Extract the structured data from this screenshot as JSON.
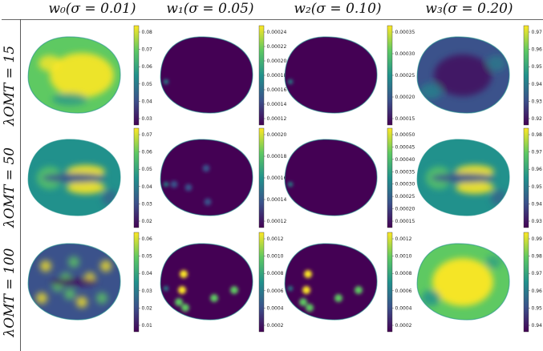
{
  "figure": {
    "columns": [
      "w₀(σ = 0.01)",
      "w₁(σ = 0.05)",
      "w₂(σ = 0.10)",
      "w₃(σ = 0.20)"
    ],
    "rows": [
      "λₒₘₜ = 15",
      "λₒₘₜ = 50",
      "λₒₘₜ = 100"
    ],
    "row_labels": [
      "λOMT = 15",
      "λOMT = 50",
      "λOMT = 100"
    ]
  },
  "colormap": {
    "name": "viridis",
    "stops": [
      "#440154",
      "#3b528b",
      "#21918c",
      "#5ec962",
      "#fde725"
    ]
  },
  "panels": [
    {
      "row": 0,
      "col": 0,
      "pattern": "high",
      "ticks": [
        "0.08",
        "0.07",
        "0.06",
        "0.05",
        "0.04",
        "0.03"
      ]
    },
    {
      "row": 0,
      "col": 1,
      "pattern": "flat",
      "ticks": [
        "0.00024",
        "0.00022",
        "0.00020",
        "0.00018",
        "0.00016",
        "0.00014",
        "0.00012"
      ]
    },
    {
      "row": 0,
      "col": 2,
      "pattern": "flat",
      "ticks": [
        "0.00035",
        "0.00030",
        "0.00025",
        "0.00020",
        "0.00015"
      ]
    },
    {
      "row": 0,
      "col": 3,
      "pattern": "low",
      "ticks": [
        "0.97",
        "0.96",
        "0.95",
        "0.94",
        "0.93",
        "0.92"
      ]
    },
    {
      "row": 1,
      "col": 0,
      "pattern": "mid",
      "ticks": [
        "0.07",
        "0.06",
        "0.05",
        "0.04",
        "0.03",
        "0.02"
      ]
    },
    {
      "row": 1,
      "col": 1,
      "pattern": "dots",
      "ticks": [
        "0.00020",
        "0.00018",
        "0.00016",
        "0.00014",
        "0.00012"
      ]
    },
    {
      "row": 1,
      "col": 2,
      "pattern": "flat",
      "ticks": [
        "0.00050",
        "0.00045",
        "0.00040",
        "0.00035",
        "0.00030",
        "0.00025",
        "0.00020",
        "0.00015"
      ]
    },
    {
      "row": 1,
      "col": 3,
      "pattern": "mid",
      "ticks": [
        "0.98",
        "0.97",
        "0.96",
        "0.95",
        "0.94",
        "0.93"
      ]
    },
    {
      "row": 2,
      "col": 0,
      "pattern": "speckle",
      "ticks": [
        "0.06",
        "0.05",
        "0.04",
        "0.03",
        "0.02",
        "0.01"
      ]
    },
    {
      "row": 2,
      "col": 1,
      "pattern": "bright-dots",
      "ticks": [
        "0.0012",
        "0.0010",
        "0.0008",
        "0.0006",
        "0.0004",
        "0.0002"
      ]
    },
    {
      "row": 2,
      "col": 2,
      "pattern": "bright-dots",
      "ticks": [
        "0.0012",
        "0.0010",
        "0.0008",
        "0.0006",
        "0.0004",
        "0.0002"
      ]
    },
    {
      "row": 2,
      "col": 3,
      "pattern": "bright",
      "ticks": [
        "0.99",
        "0.98",
        "0.97",
        "0.96",
        "0.95",
        "0.94"
      ]
    }
  ]
}
